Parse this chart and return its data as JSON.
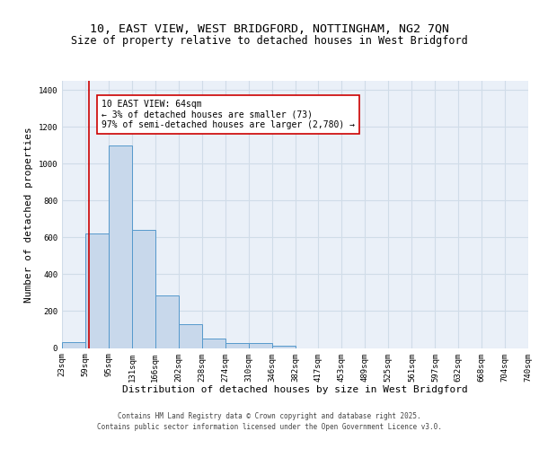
{
  "title_line1": "10, EAST VIEW, WEST BRIDGFORD, NOTTINGHAM, NG2 7QN",
  "title_line2": "Size of property relative to detached houses in West Bridgford",
  "xlabel": "Distribution of detached houses by size in West Bridgford",
  "ylabel": "Number of detached properties",
  "bin_edges": [
    23,
    59,
    95,
    131,
    166,
    202,
    238,
    274,
    310,
    346,
    382,
    417,
    453,
    489,
    525,
    561,
    597,
    632,
    668,
    704,
    740
  ],
  "bar_heights": [
    30,
    620,
    1100,
    640,
    285,
    130,
    50,
    25,
    25,
    10,
    0,
    0,
    0,
    0,
    0,
    0,
    0,
    0,
    0,
    0
  ],
  "bar_color": "#c8d8eb",
  "bar_edgecolor": "#5599cc",
  "property_size": 64,
  "vline_color": "#cc0000",
  "ylim": [
    0,
    1450
  ],
  "annotation_text": "10 EAST VIEW: 64sqm\n← 3% of detached houses are smaller (73)\n97% of semi-detached houses are larger (2,780) →",
  "annotation_boxcolor": "white",
  "annotation_edgecolor": "#cc0000",
  "bg_color": "#eaf0f8",
  "grid_color": "#d0dce8",
  "footer_line1": "Contains HM Land Registry data © Crown copyright and database right 2025.",
  "footer_line2": "Contains public sector information licensed under the Open Government Licence v3.0.",
  "title_fontsize": 9.5,
  "subtitle_fontsize": 8.5,
  "tick_fontsize": 6.5,
  "ylabel_fontsize": 8,
  "xlabel_fontsize": 8,
  "annot_fontsize": 7,
  "footer_fontsize": 5.5
}
